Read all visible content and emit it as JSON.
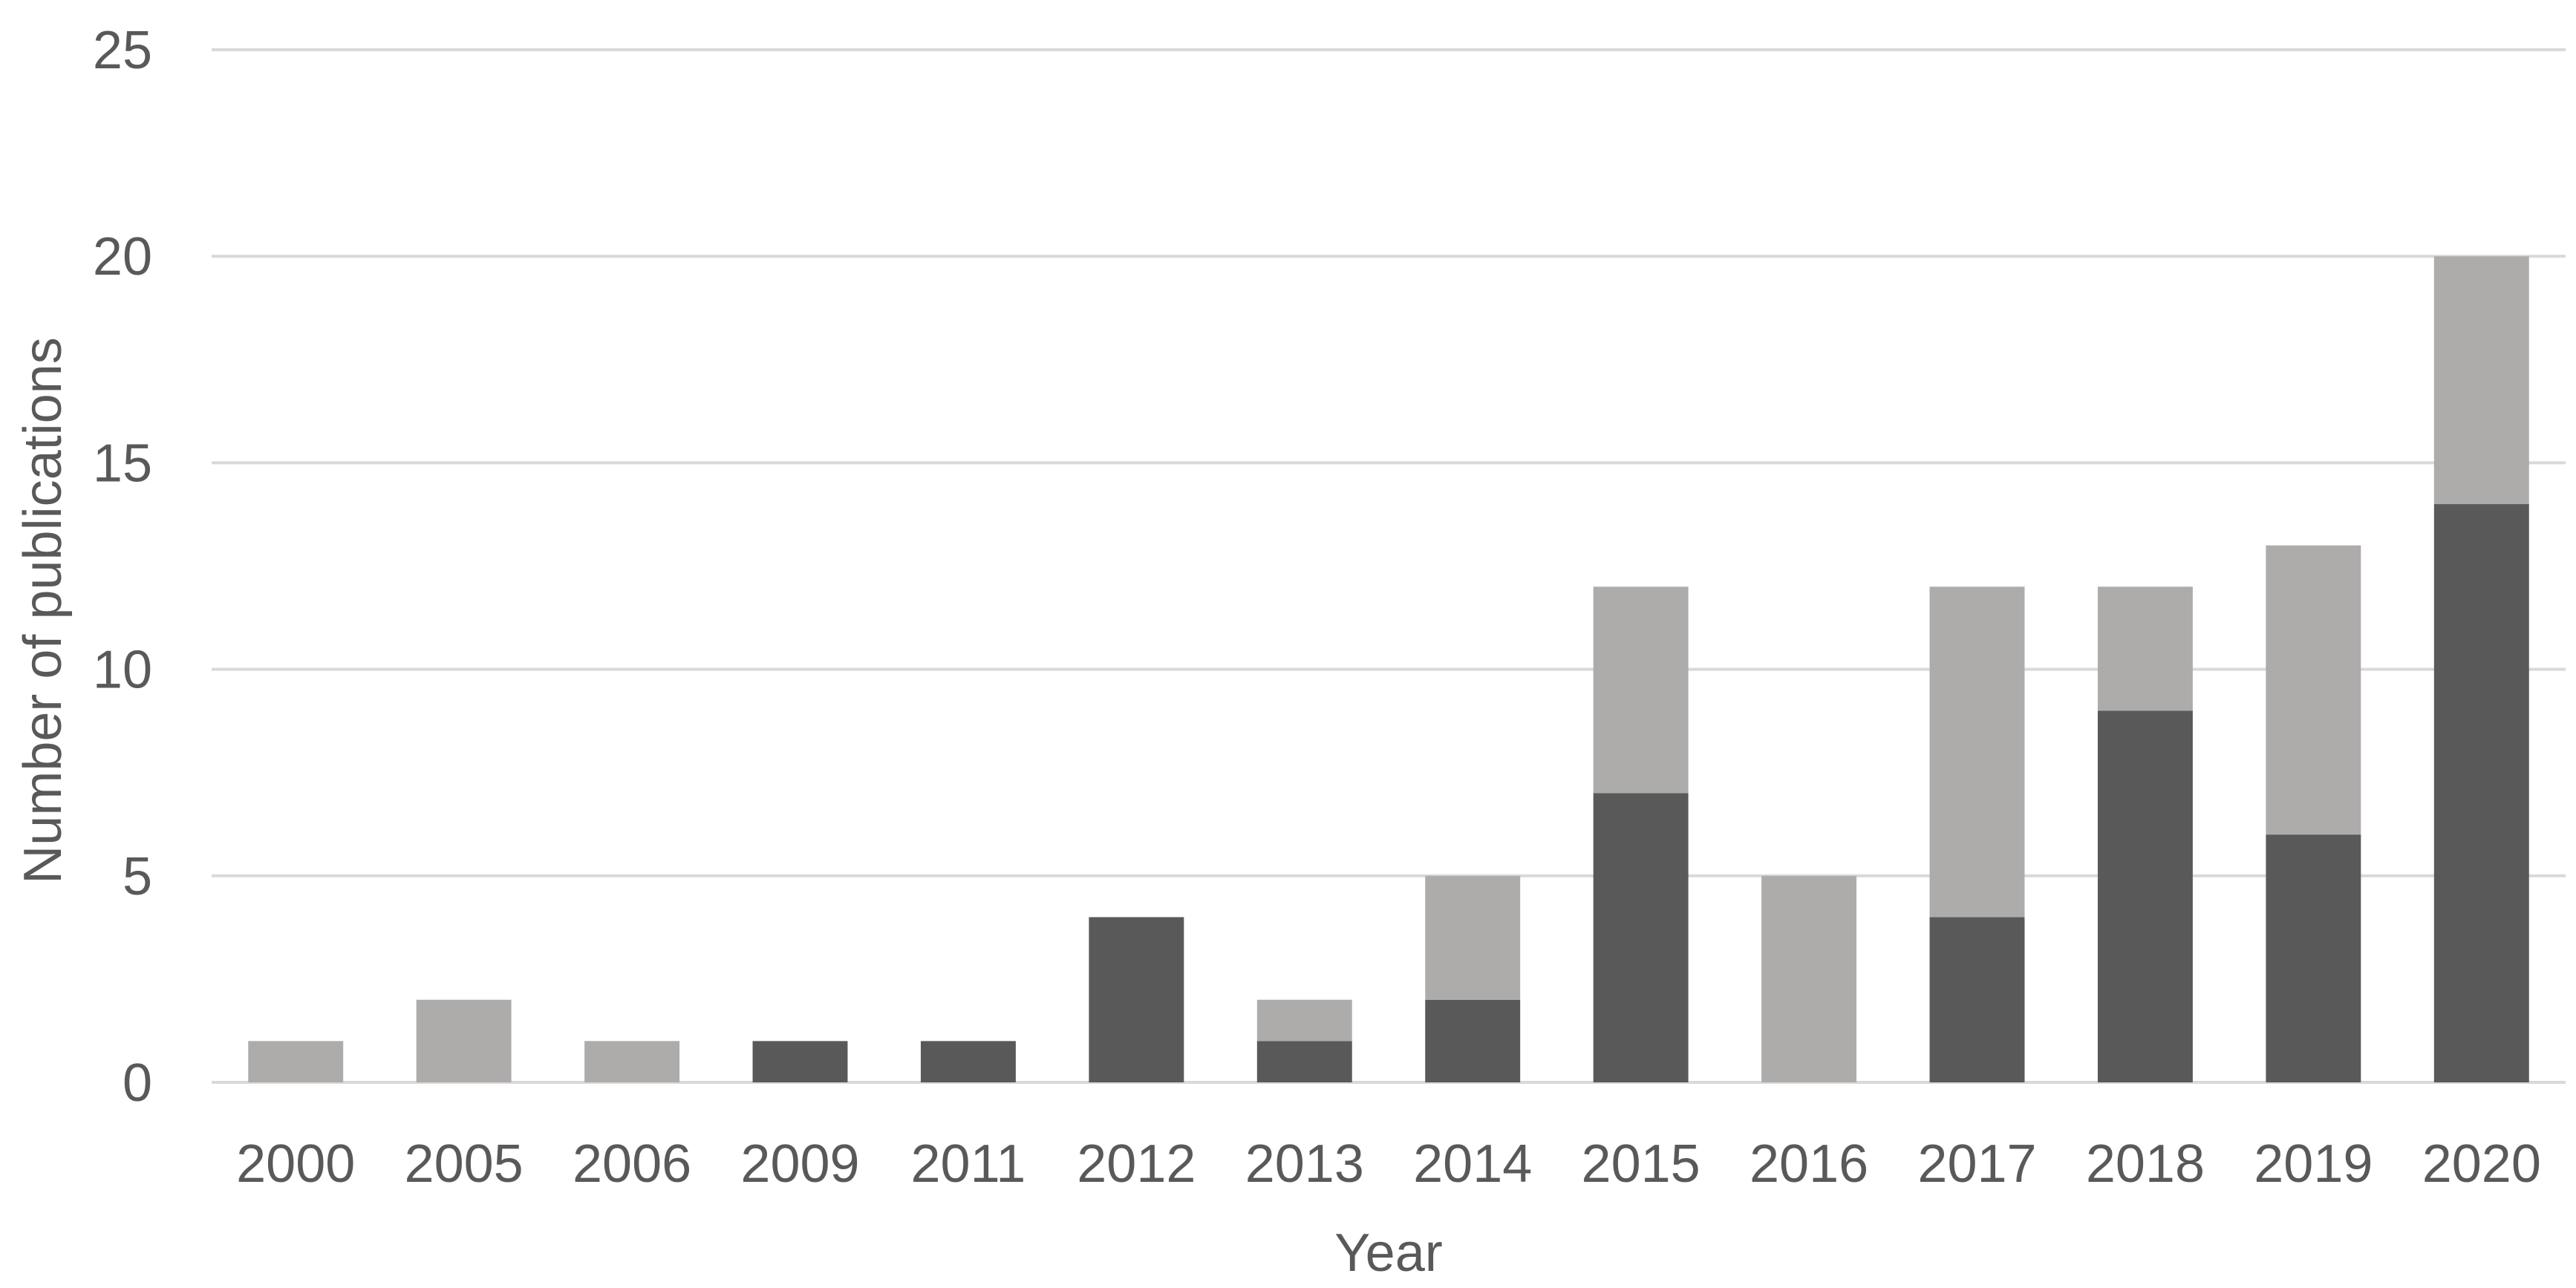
{
  "chart_data": {
    "type": "bar",
    "stacked": true,
    "title": "",
    "xlabel": "Year",
    "ylabel": "Number of publications",
    "ylim": [
      0,
      25
    ],
    "yticks": [
      "0",
      "5",
      "10",
      "15",
      "20",
      "25"
    ],
    "grid": true,
    "legend": "none",
    "categories": [
      "2000",
      "2005",
      "2006",
      "2009",
      "2011",
      "2012",
      "2013",
      "2014",
      "2015",
      "2016",
      "2017",
      "2018",
      "2019",
      "2020"
    ],
    "series": [
      {
        "color": "#595959",
        "values": [
          0,
          0,
          0,
          1,
          1,
          4,
          1,
          2,
          7,
          0,
          4,
          9,
          6,
          14
        ]
      },
      {
        "color": "#aeabab",
        "values": [
          1,
          2,
          1,
          0,
          0,
          0,
          1,
          3,
          5,
          5,
          8,
          3,
          7,
          6
        ]
      }
    ]
  }
}
